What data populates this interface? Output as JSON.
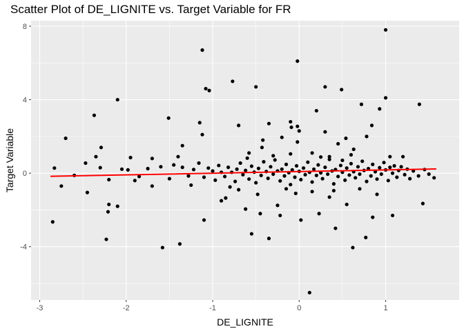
{
  "chart_data": {
    "type": "scatter",
    "title": "Scatter Plot of DE_LIGNITE vs. Target Variable for FR",
    "xlabel": "DE_LIGNITE",
    "ylabel": "Target Variable",
    "xlim": [
      -3.1,
      1.85
    ],
    "ylim": [
      -6.9,
      8.3
    ],
    "x_ticks": [
      -3,
      -2,
      -1,
      0,
      1
    ],
    "x_tick_labels": [
      "-3",
      "-2",
      "-1",
      "0",
      "1"
    ],
    "y_ticks": [
      -4,
      0,
      4,
      8
    ],
    "y_tick_labels": [
      "-4",
      "0",
      "4",
      "8"
    ],
    "grid": true,
    "background": "#ebebeb",
    "grid_color": "#ffffff",
    "point_color": "#000000",
    "trend_color": "#ff0000",
    "trend_line": {
      "x": [
        -2.87,
        1.58
      ],
      "y": [
        -0.17,
        0.23
      ]
    },
    "points": [
      [
        1.0,
        7.8
      ],
      [
        -1.12,
        6.7
      ],
      [
        -0.02,
        6.1
      ],
      [
        -0.5,
        4.7
      ],
      [
        -1.08,
        4.6
      ],
      [
        -1.04,
        4.5
      ],
      [
        -0.77,
        5.0
      ],
      [
        0.3,
        4.7
      ],
      [
        0.49,
        4.55
      ],
      [
        -2.1,
        4.0
      ],
      [
        1.0,
        4.1
      ],
      [
        0.93,
        3.5
      ],
      [
        1.39,
        3.75
      ],
      [
        0.72,
        3.75
      ],
      [
        -2.37,
        3.15
      ],
      [
        -1.51,
        3.0
      ],
      [
        0.2,
        3.4
      ],
      [
        -1.15,
        2.75
      ],
      [
        -0.35,
        2.7
      ],
      [
        -0.02,
        2.55
      ],
      [
        0.0,
        2.3
      ],
      [
        -0.09,
        2.5
      ],
      [
        0.3,
        2.25
      ],
      [
        0.84,
        2.6
      ],
      [
        -0.1,
        2.8
      ],
      [
        -0.7,
        2.6
      ],
      [
        -1.12,
        2.1
      ],
      [
        -1.35,
        1.5
      ],
      [
        -2.7,
        1.9
      ],
      [
        -2.29,
        1.4
      ],
      [
        0.54,
        1.9
      ],
      [
        0.78,
        2.0
      ],
      [
        -0.2,
        1.95
      ],
      [
        -0.43,
        1.4
      ],
      [
        0.63,
        1.3
      ],
      [
        -0.58,
        1.1
      ],
      [
        -0.42,
        1.8
      ],
      [
        -0.02,
        1.7
      ],
      [
        0.45,
        1.6
      ],
      [
        -2.35,
        0.9
      ],
      [
        -1.95,
        0.85
      ],
      [
        -1.7,
        0.8
      ],
      [
        -1.4,
        0.9
      ],
      [
        -0.1,
        1.05
      ],
      [
        0.15,
        1.1
      ],
      [
        0.35,
        0.9
      ],
      [
        0.6,
        1.0
      ],
      [
        1.05,
        0.9
      ],
      [
        1.2,
        0.9
      ],
      [
        -2.2,
        -1.7
      ],
      [
        -2.1,
        -1.8
      ],
      [
        -2.21,
        -2.1
      ],
      [
        -2.23,
        -3.6
      ],
      [
        -2.85,
        -2.65
      ],
      [
        -1.58,
        -4.05
      ],
      [
        -1.38,
        -3.85
      ],
      [
        -1.1,
        -2.55
      ],
      [
        -0.55,
        -3.3
      ],
      [
        -0.35,
        -3.55
      ],
      [
        -0.45,
        -2.2
      ],
      [
        -0.22,
        -2.3
      ],
      [
        0.02,
        -2.55
      ],
      [
        0.23,
        -2.2
      ],
      [
        0.42,
        -3.0
      ],
      [
        0.62,
        -4.05
      ],
      [
        0.85,
        -2.4
      ],
      [
        0.77,
        -3.5
      ],
      [
        1.08,
        -2.3
      ],
      [
        1.43,
        -1.65
      ],
      [
        0.12,
        -6.5
      ],
      [
        -0.62,
        -1.95
      ],
      [
        -0.85,
        -1.35
      ],
      [
        -2.45,
        -1.05
      ],
      [
        -1.7,
        -0.7
      ],
      [
        -1.9,
        -0.4
      ],
      [
        -0.9,
        -1.5
      ],
      [
        0.35,
        -1.3
      ],
      [
        0.9,
        -1.15
      ],
      [
        0.55,
        -1.7
      ],
      [
        -0.25,
        -1.75
      ],
      [
        -0.7,
        -0.9
      ],
      [
        -2.75,
        -0.7
      ],
      [
        -2.83,
        0.28
      ],
      [
        -2.6,
        -0.12
      ],
      [
        -2.47,
        0.55
      ],
      [
        -2.3,
        0.3
      ],
      [
        -2.2,
        -0.35
      ],
      [
        -2.05,
        0.22
      ],
      [
        -1.98,
        0.18
      ],
      [
        -1.85,
        -0.18
      ],
      [
        -1.75,
        0.25
      ],
      [
        -1.6,
        0.35
      ],
      [
        -1.5,
        -0.3
      ],
      [
        -1.45,
        0.45
      ],
      [
        -1.35,
        0.32
      ],
      [
        -1.28,
        -0.15
      ],
      [
        -1.22,
        0.2
      ],
      [
        -1.16,
        0.55
      ],
      [
        -1.1,
        -0.22
      ],
      [
        -1.05,
        0.28
      ],
      [
        -1.0,
        0.12
      ],
      [
        -0.97,
        -0.38
      ],
      [
        -0.93,
        0.42
      ],
      [
        -0.9,
        0.05
      ],
      [
        -0.86,
        -0.18
      ],
      [
        -0.82,
        0.32
      ],
      [
        -0.78,
        0.05
      ],
      [
        -0.74,
        -0.45
      ],
      [
        -0.72,
        0.22
      ],
      [
        -0.68,
        0.55
      ],
      [
        -0.65,
        -0.08
      ],
      [
        -0.62,
        0.15
      ],
      [
        -0.58,
        -0.32
      ],
      [
        -0.55,
        0.38
      ],
      [
        -0.52,
        0.06
      ],
      [
        -0.5,
        -0.52
      ],
      [
        -0.47,
        0.26
      ],
      [
        -0.44,
        -0.12
      ],
      [
        -0.41,
        0.62
      ],
      [
        -0.38,
        0.09
      ],
      [
        -0.36,
        -0.28
      ],
      [
        -0.33,
        0.35
      ],
      [
        -0.3,
        -0.05
      ],
      [
        -0.28,
        0.72
      ],
      [
        -0.25,
        0.12
      ],
      [
        -0.22,
        -0.42
      ],
      [
        -0.2,
        0.22
      ],
      [
        -0.17,
        -0.15
      ],
      [
        -0.15,
        0.48
      ],
      [
        -0.12,
        0.03
      ],
      [
        -0.1,
        -0.62
      ],
      [
        -0.08,
        0.18
      ],
      [
        -0.05,
        -0.22
      ],
      [
        -0.03,
        0.4
      ],
      [
        0.0,
        0.1
      ],
      [
        0.02,
        -0.35
      ],
      [
        0.05,
        0.28
      ],
      [
        0.07,
        -0.08
      ],
      [
        0.1,
        0.6
      ],
      [
        0.12,
        0.05
      ],
      [
        0.15,
        -0.48
      ],
      [
        0.17,
        0.22
      ],
      [
        0.2,
        -0.12
      ],
      [
        0.22,
        0.45
      ],
      [
        0.25,
        0.02
      ],
      [
        0.27,
        -0.3
      ],
      [
        0.3,
        0.32
      ],
      [
        0.33,
        -0.05
      ],
      [
        0.35,
        0.75
      ],
      [
        0.38,
        0.12
      ],
      [
        0.4,
        -0.58
      ],
      [
        0.42,
        0.2
      ],
      [
        0.45,
        -0.18
      ],
      [
        0.48,
        0.42
      ],
      [
        0.5,
        0.05
      ],
      [
        0.53,
        -0.38
      ],
      [
        0.55,
        0.28
      ],
      [
        0.58,
        -0.1
      ],
      [
        0.6,
        0.52
      ],
      [
        0.63,
        0.08
      ],
      [
        0.65,
        -0.25
      ],
      [
        0.68,
        0.35
      ],
      [
        0.7,
        -0.05
      ],
      [
        0.73,
        0.65
      ],
      [
        0.75,
        0.15
      ],
      [
        0.78,
        -0.45
      ],
      [
        0.8,
        0.25
      ],
      [
        0.83,
        -0.15
      ],
      [
        0.85,
        0.48
      ],
      [
        0.88,
        0.08
      ],
      [
        0.9,
        -0.32
      ],
      [
        0.93,
        0.3
      ],
      [
        0.95,
        -0.05
      ],
      [
        0.98,
        0.58
      ],
      [
        1.0,
        0.18
      ],
      [
        1.03,
        -0.4
      ],
      [
        1.05,
        0.32
      ],
      [
        1.08,
        0.0
      ],
      [
        1.1,
        0.4
      ],
      [
        1.13,
        -0.22
      ],
      [
        1.15,
        0.15
      ],
      [
        1.18,
        0.35
      ],
      [
        1.22,
        -0.08
      ],
      [
        1.25,
        0.22
      ],
      [
        1.28,
        -0.3
      ],
      [
        1.32,
        0.12
      ],
      [
        1.38,
        -0.15
      ],
      [
        1.45,
        0.2
      ],
      [
        1.5,
        -0.05
      ],
      [
        1.56,
        -0.25
      ],
      [
        -0.6,
        0.82
      ],
      [
        -0.3,
        0.95
      ],
      [
        0.25,
        0.88
      ],
      [
        0.5,
        0.7
      ],
      [
        -0.15,
        -0.85
      ],
      [
        0.4,
        -0.95
      ],
      [
        0.7,
        -0.85
      ],
      [
        -0.8,
        -0.75
      ],
      [
        -1.25,
        -0.65
      ],
      [
        -0.04,
        -1.1
      ],
      [
        0.15,
        -1.0
      ],
      [
        -0.48,
        -1.15
      ]
    ]
  }
}
